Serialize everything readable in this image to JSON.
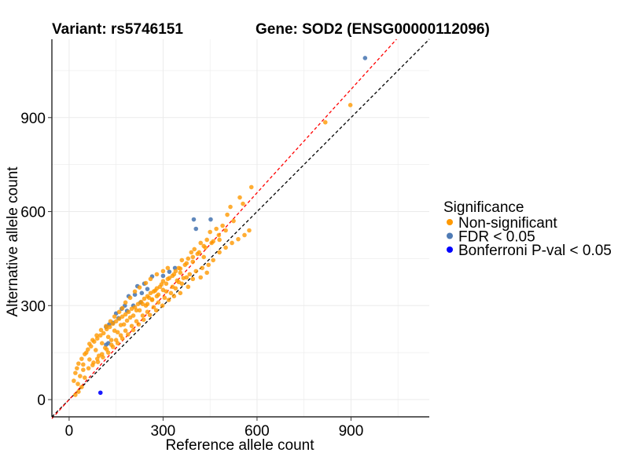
{
  "chart_data": {
    "type": "scatter",
    "title_variant": "Variant: rs5746151",
    "title_gene": "Gene: SOD2 (ENSG00000112096)",
    "xlabel": "Reference allele count",
    "ylabel": "Alternative allele count",
    "xlim": [
      -55,
      1150
    ],
    "ylim": [
      -55,
      1150
    ],
    "xticks": [
      0,
      300,
      600,
      900
    ],
    "yticks": [
      0,
      300,
      600,
      900
    ],
    "grid": true,
    "reference_lines": [
      {
        "name": "identity",
        "slope": 1.0,
        "intercept": 0,
        "color": "#000000",
        "style": "dashed"
      },
      {
        "name": "fit",
        "slope": 1.1,
        "intercept": 0,
        "color": "#ff0000",
        "style": "dashed"
      }
    ],
    "legend": {
      "title": "Significance",
      "position": "right",
      "entries": [
        {
          "label": "Non-significant",
          "color": "#ff9900"
        },
        {
          "label": "FDR < 0.05",
          "color": "#4f7bb5"
        },
        {
          "label": "Bonferroni P-val < 0.05",
          "color": "#0000ff"
        }
      ]
    },
    "series": [
      {
        "name": "FDR < 0.05",
        "color": "#4f7bb5",
        "points": [
          [
            945,
            1090
          ],
          [
            398,
            575
          ],
          [
            452,
            575
          ],
          [
            405,
            545
          ],
          [
            338,
            420
          ],
          [
            320,
            408
          ],
          [
            300,
            395
          ],
          [
            265,
            393
          ],
          [
            240,
            370
          ],
          [
            218,
            362
          ],
          [
            250,
            353
          ],
          [
            232,
            340
          ],
          [
            210,
            335
          ],
          [
            190,
            330
          ],
          [
            228,
            310
          ],
          [
            178,
            300
          ],
          [
            205,
            300
          ],
          [
            168,
            290
          ],
          [
            185,
            283
          ],
          [
            150,
            275
          ],
          [
            158,
            260
          ],
          [
            140,
            245
          ],
          [
            128,
            240
          ],
          [
            118,
            232
          ],
          [
            125,
            180
          ],
          [
            118,
            175
          ]
        ]
      },
      {
        "name": "Bonferroni P-val < 0.05",
        "color": "#0000ff",
        "points": [
          [
            100,
            22
          ]
        ]
      },
      {
        "name": "Non-significant",
        "color": "#ff9900",
        "points": [
          [
            898,
            940
          ],
          [
            818,
            885
          ],
          [
            582,
            678
          ],
          [
            545,
            645
          ],
          [
            555,
            625
          ],
          [
            515,
            615
          ],
          [
            505,
            590
          ],
          [
            525,
            570
          ],
          [
            490,
            555
          ],
          [
            470,
            545
          ],
          [
            500,
            540
          ],
          [
            450,
            535
          ],
          [
            478,
            525
          ],
          [
            440,
            510
          ],
          [
            460,
            505
          ],
          [
            420,
            500
          ],
          [
            430,
            490
          ],
          [
            400,
            480
          ],
          [
            390,
            470
          ],
          [
            410,
            465
          ],
          [
            430,
            455
          ],
          [
            380,
            450
          ],
          [
            360,
            445
          ],
          [
            395,
            440
          ],
          [
            370,
            430
          ],
          [
            350,
            420
          ],
          [
            340,
            410
          ],
          [
            355,
            405
          ],
          [
            330,
            395
          ],
          [
            320,
            388
          ],
          [
            345,
            380
          ],
          [
            300,
            378
          ],
          [
            310,
            370
          ],
          [
            290,
            360
          ],
          [
            280,
            355
          ],
          [
            300,
            350
          ],
          [
            270,
            345
          ],
          [
            260,
            340
          ],
          [
            285,
            335
          ],
          [
            250,
            330
          ],
          [
            240,
            322
          ],
          [
            265,
            318
          ],
          [
            230,
            312
          ],
          [
            220,
            305
          ],
          [
            245,
            300
          ],
          [
            210,
            295
          ],
          [
            200,
            290
          ],
          [
            225,
            285
          ],
          [
            190,
            280
          ],
          [
            180,
            272
          ],
          [
            205,
            268
          ],
          [
            170,
            265
          ],
          [
            160,
            258
          ],
          [
            185,
            252
          ],
          [
            150,
            250
          ],
          [
            140,
            242
          ],
          [
            165,
            238
          ],
          [
            130,
            232
          ],
          [
            120,
            225
          ],
          [
            145,
            220
          ],
          [
            110,
            212
          ],
          [
            100,
            205
          ],
          [
            125,
            200
          ],
          [
            90,
            195
          ],
          [
            80,
            185
          ],
          [
            105,
            180
          ],
          [
            70,
            170
          ],
          [
            60,
            160
          ],
          [
            85,
            158
          ],
          [
            50,
            145
          ],
          [
            40,
            130
          ],
          [
            65,
            128
          ],
          [
            30,
            115
          ],
          [
            25,
            100
          ],
          [
            45,
            95
          ],
          [
            20,
            85
          ],
          [
            35,
            75
          ],
          [
            15,
            60
          ],
          [
            28,
            50
          ],
          [
            40,
            40
          ],
          [
            30,
            25
          ],
          [
            20,
            15
          ],
          [
            50,
            70
          ],
          [
            75,
            110
          ],
          [
            95,
            140
          ],
          [
            115,
            165
          ],
          [
            135,
            190
          ],
          [
            155,
            215
          ],
          [
            175,
            240
          ],
          [
            195,
            262
          ],
          [
            215,
            285
          ],
          [
            235,
            305
          ],
          [
            255,
            325
          ],
          [
            275,
            348
          ],
          [
            295,
            368
          ],
          [
            315,
            385
          ],
          [
            335,
            400
          ],
          [
            355,
            418
          ],
          [
            375,
            435
          ],
          [
            395,
            455
          ],
          [
            415,
            470
          ],
          [
            435,
            485
          ],
          [
            455,
            500
          ],
          [
            480,
            510
          ],
          [
            375,
            390
          ],
          [
            360,
            370
          ],
          [
            340,
            355
          ],
          [
            325,
            340
          ],
          [
            305,
            325
          ],
          [
            285,
            310
          ],
          [
            270,
            295
          ],
          [
            250,
            280
          ],
          [
            235,
            268
          ],
          [
            215,
            250
          ],
          [
            200,
            235
          ],
          [
            180,
            220
          ],
          [
            165,
            205
          ],
          [
            150,
            190
          ],
          [
            135,
            175
          ],
          [
            120,
            160
          ],
          [
            105,
            145
          ],
          [
            90,
            130
          ],
          [
            78,
            118
          ],
          [
            62,
            100
          ],
          [
            250,
            305
          ],
          [
            265,
            320
          ],
          [
            280,
            330
          ],
          [
            310,
            345
          ],
          [
            330,
            360
          ],
          [
            350,
            375
          ],
          [
            365,
            388
          ],
          [
            385,
            400
          ],
          [
            405,
            410
          ],
          [
            425,
            420
          ],
          [
            445,
            430
          ],
          [
            460,
            445
          ],
          [
            480,
            470
          ],
          [
            500,
            485
          ],
          [
            520,
            500
          ],
          [
            540,
            512
          ],
          [
            560,
            525
          ],
          [
            575,
            540
          ],
          [
            420,
            390
          ],
          [
            440,
            405
          ],
          [
            395,
            385
          ],
          [
            380,
            360
          ],
          [
            355,
            340
          ],
          [
            335,
            330
          ],
          [
            318,
            318
          ],
          [
            298,
            300
          ],
          [
            278,
            285
          ],
          [
            258,
            270
          ],
          [
            238,
            255
          ],
          [
            222,
            240
          ],
          [
            205,
            222
          ],
          [
            188,
            208
          ],
          [
            170,
            195
          ],
          [
            155,
            180
          ],
          [
            140,
            168
          ],
          [
            125,
            150
          ],
          [
            108,
            135
          ],
          [
            92,
            120
          ],
          [
            300,
            410
          ],
          [
            315,
            420
          ],
          [
            280,
            400
          ],
          [
            260,
            385
          ],
          [
            245,
            372
          ],
          [
            225,
            358
          ],
          [
            210,
            345
          ],
          [
            195,
            325
          ],
          [
            180,
            310
          ],
          [
            170,
            292
          ],
          [
            160,
            280
          ],
          [
            145,
            265
          ],
          [
            132,
            250
          ],
          [
            118,
            235
          ],
          [
            102,
            222
          ],
          [
            88,
            205
          ],
          [
            75,
            190
          ],
          [
            65,
            178
          ],
          [
            55,
            150
          ],
          [
            45,
            112
          ]
        ]
      }
    ]
  }
}
